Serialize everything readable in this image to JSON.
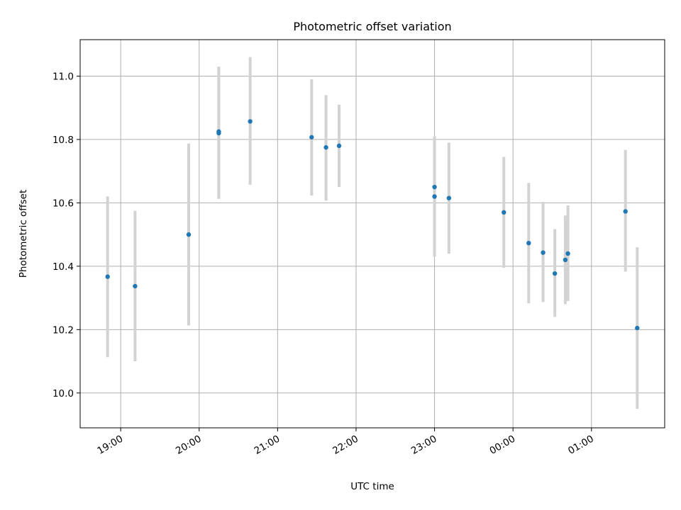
{
  "chart_data": {
    "type": "scatter",
    "title": "Photometric offset variation",
    "xlabel": "UTC time",
    "ylabel": "Photometric offset",
    "x_tick_labels": [
      "19:00",
      "20:00",
      "21:00",
      "22:00",
      "23:00",
      "00:00",
      "01:00"
    ],
    "x_ticks": [
      "2000-01-01T19:00",
      "2000-01-01T20:00",
      "2000-01-01T21:00",
      "2000-01-01T22:00",
      "2000-01-01T23:00",
      "2000-01-02T00:00",
      "2000-01-02T01:00"
    ],
    "xlim": [
      "2000-01-01T18:29",
      "2000-01-02T01:56"
    ],
    "y_ticks": [
      10.0,
      10.2,
      10.4,
      10.6,
      10.8,
      11.0
    ],
    "y_tick_labels": [
      "10.0",
      "10.2",
      "10.4",
      "10.6",
      "10.8",
      "11.0"
    ],
    "ylim": [
      9.89,
      11.115
    ],
    "grid": true,
    "colors": {
      "point": "#1f77b4",
      "errorbar": "#d3d3d3",
      "grid": "#b0b0b0"
    },
    "points": [
      {
        "t": "2000-01-01T18:50",
        "y": 10.367,
        "err_low": 10.113,
        "err_high": 10.62
      },
      {
        "t": "2000-01-01T19:11",
        "y": 10.337,
        "err_low": 10.1,
        "err_high": 10.575
      },
      {
        "t": "2000-01-01T19:52",
        "y": 10.5,
        "err_low": 10.213,
        "err_high": 10.787
      },
      {
        "t": "2000-01-01T20:15",
        "y": 10.825,
        "err_low": 10.613,
        "err_high": 11.03
      },
      {
        "t": "2000-01-01T20:15",
        "y": 10.82,
        "err_low": 10.613,
        "err_high": 11.03
      },
      {
        "t": "2000-01-01T20:39",
        "y": 10.857,
        "err_low": 10.657,
        "err_high": 11.06
      },
      {
        "t": "2000-01-01T21:26",
        "y": 10.807,
        "err_low": 10.623,
        "err_high": 10.99
      },
      {
        "t": "2000-01-01T21:37",
        "y": 10.775,
        "err_low": 10.607,
        "err_high": 10.94
      },
      {
        "t": "2000-01-01T21:47",
        "y": 10.78,
        "err_low": 10.65,
        "err_high": 10.91
      },
      {
        "t": "2000-01-01T23:00",
        "y": 10.65,
        "err_low": 10.43,
        "err_high": 10.81
      },
      {
        "t": "2000-01-01T23:00",
        "y": 10.62,
        "err_low": 10.43,
        "err_high": 10.81
      },
      {
        "t": "2000-01-01T23:11",
        "y": 10.615,
        "err_low": 10.44,
        "err_high": 10.79
      },
      {
        "t": "2000-01-01T23:53",
        "y": 10.57,
        "err_low": 10.395,
        "err_high": 10.745
      },
      {
        "t": "2000-01-02T00:12",
        "y": 10.473,
        "err_low": 10.283,
        "err_high": 10.663
      },
      {
        "t": "2000-01-02T00:23",
        "y": 10.443,
        "err_low": 10.287,
        "err_high": 10.603
      },
      {
        "t": "2000-01-02T00:32",
        "y": 10.377,
        "err_low": 10.24,
        "err_high": 10.517
      },
      {
        "t": "2000-01-02T00:40",
        "y": 10.42,
        "err_low": 10.28,
        "err_high": 10.56
      },
      {
        "t": "2000-01-02T00:42",
        "y": 10.44,
        "err_low": 10.29,
        "err_high": 10.592
      },
      {
        "t": "2000-01-02T01:26",
        "y": 10.573,
        "err_low": 10.383,
        "err_high": 10.767
      },
      {
        "t": "2000-01-02T01:35",
        "y": 10.205,
        "err_low": 9.95,
        "err_high": 10.46
      }
    ]
  }
}
